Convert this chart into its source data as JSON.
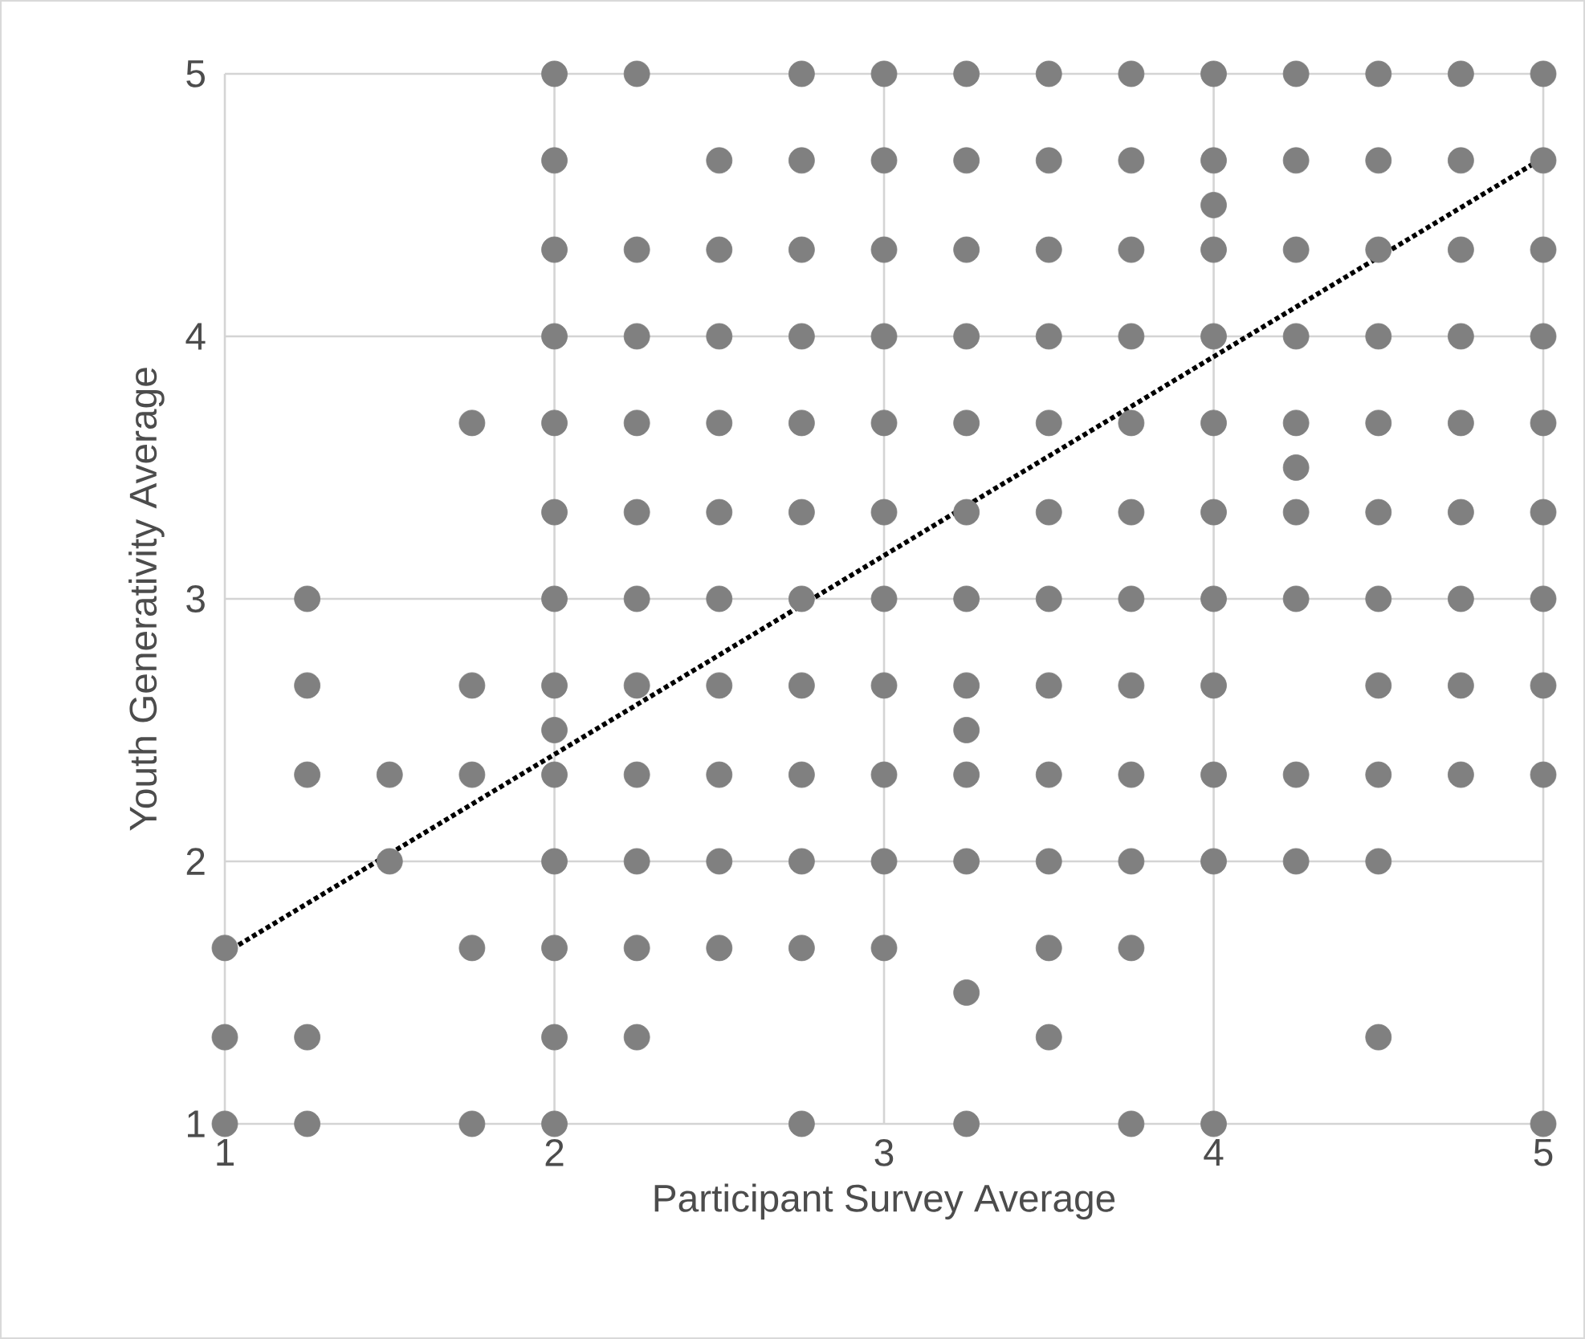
{
  "chart_data": {
    "type": "scatter",
    "xlabel": "Participant Survey Average",
    "ylabel": "Youth Generativity Average",
    "xlim": [
      1,
      5
    ],
    "ylim": [
      1,
      5
    ],
    "xticks": [
      1,
      2,
      3,
      4,
      5
    ],
    "yticks": [
      1,
      2,
      3,
      4,
      5
    ],
    "grid": true,
    "series": [
      {
        "color": "#808080",
        "marker": "circle",
        "x": [
          1,
          1,
          1,
          1.25,
          1.25,
          1.25,
          1.25,
          1.25,
          1.5,
          1.5,
          1.75,
          1.75,
          1.75,
          1.75,
          1.75,
          2,
          2,
          2,
          2,
          2,
          2,
          2,
          2,
          2,
          2,
          2,
          2,
          2,
          2,
          2.25,
          2.25,
          2.25,
          2.25,
          2.25,
          2.25,
          2.25,
          2.25,
          2.25,
          2.25,
          2.25,
          2.5,
          2.5,
          2.5,
          2.5,
          2.5,
          2.5,
          2.5,
          2.5,
          2.5,
          2.5,
          2.75,
          2.75,
          2.75,
          2.75,
          2.75,
          2.75,
          2.75,
          2.75,
          2.75,
          2.75,
          2.75,
          2.75,
          3,
          3,
          3,
          3,
          3,
          3,
          3,
          3,
          3,
          3,
          3,
          3.25,
          3.25,
          3.25,
          3.25,
          3.25,
          3.25,
          3.25,
          3.25,
          3.25,
          3.25,
          3.25,
          3.25,
          3.25,
          3.5,
          3.5,
          3.5,
          3.5,
          3.5,
          3.5,
          3.5,
          3.5,
          3.5,
          3.5,
          3.5,
          3.5,
          3.75,
          3.75,
          3.75,
          3.75,
          3.75,
          3.75,
          3.75,
          3.75,
          3.75,
          3.75,
          3.75,
          3.75,
          4,
          4,
          4,
          4,
          4,
          4,
          4,
          4,
          4,
          4,
          4,
          4,
          4.25,
          4.25,
          4.25,
          4.25,
          4.25,
          4.25,
          4.25,
          4.25,
          4.25,
          4.25,
          4.5,
          4.5,
          4.5,
          4.5,
          4.5,
          4.5,
          4.5,
          4.5,
          4.5,
          4.5,
          4.5,
          4.75,
          4.75,
          4.75,
          4.75,
          4.75,
          4.75,
          4.75,
          4.75,
          4.75,
          5,
          5,
          5,
          5,
          5,
          5,
          5,
          5,
          5,
          5
        ],
        "values": [
          1.67,
          1.33,
          1,
          3,
          2.67,
          2.33,
          1.33,
          1,
          2.33,
          2,
          3.67,
          2.67,
          2.33,
          1.67,
          1,
          5,
          4.67,
          4.33,
          4,
          3.67,
          3.33,
          3,
          2.67,
          2.5,
          2.33,
          2,
          1.67,
          1.33,
          1,
          5,
          4.33,
          4,
          3.67,
          3.33,
          3,
          2.67,
          2.33,
          2,
          1.67,
          1.33,
          4.67,
          4.33,
          4,
          3.67,
          3.33,
          3,
          2.67,
          2.33,
          2,
          1.67,
          5,
          4.67,
          4.33,
          4,
          3.67,
          3.33,
          3,
          2.67,
          2.33,
          2,
          1.67,
          1,
          5,
          4.67,
          4.33,
          4,
          3.67,
          3.33,
          3,
          2.67,
          2.33,
          2,
          1.67,
          5,
          4.67,
          4.33,
          4,
          3.67,
          3.33,
          3,
          2.67,
          2.5,
          2.33,
          2,
          1.5,
          1,
          5,
          4.67,
          4.33,
          4,
          3.67,
          3.33,
          3,
          2.67,
          2.33,
          2,
          1.67,
          1.33,
          5,
          4.67,
          4.33,
          4,
          3.67,
          3.33,
          3,
          2.67,
          2.33,
          2,
          1.67,
          1,
          5,
          4.67,
          4.5,
          4.33,
          4,
          3.67,
          3.33,
          3,
          2.67,
          2.33,
          2,
          1,
          5,
          4.67,
          4.33,
          4,
          3.67,
          3.5,
          3.33,
          3,
          2.33,
          2,
          5,
          4.67,
          4.33,
          4,
          3.67,
          3.33,
          3,
          2.67,
          2.33,
          2,
          1.33,
          5,
          4.67,
          4.33,
          4,
          3.67,
          3.33,
          3,
          2.67,
          2.33,
          5,
          4.67,
          4.33,
          4,
          3.67,
          3.33,
          3,
          2.67,
          2.33,
          1
        ]
      },
      {
        "type": "line",
        "color": "#000000",
        "line_style": "dotted",
        "marker": "none",
        "x": [
          1,
          5
        ],
        "values": [
          1.65,
          4.68
        ]
      }
    ]
  }
}
